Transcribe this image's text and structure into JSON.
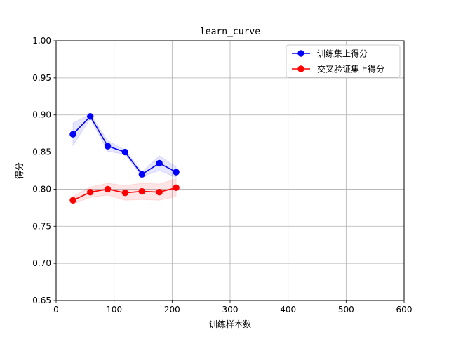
{
  "chart_data": {
    "type": "line",
    "title": "learn_curve",
    "xlabel": "训练样本数",
    "ylabel": "得分",
    "xlim": [
      0,
      600
    ],
    "ylim": [
      0.65,
      1.0
    ],
    "xticks": [
      0,
      100,
      200,
      300,
      400,
      500,
      600
    ],
    "yticks": [
      0.65,
      0.7,
      0.75,
      0.8,
      0.85,
      0.9,
      0.95,
      1.0
    ],
    "grid": true,
    "legend_position": "top-right",
    "x": [
      29,
      59,
      89,
      119,
      148,
      178,
      207
    ],
    "series": [
      {
        "name": "训练集上得分",
        "color": "#0000ff",
        "band_color": "#0000ff",
        "values": [
          0.874,
          0.898,
          0.858,
          0.85,
          0.82,
          0.835,
          0.823
        ],
        "std": [
          0.015,
          0.003,
          0.007,
          0.003,
          0.003,
          0.01,
          0.007
        ]
      },
      {
        "name": "交叉验证集上得分",
        "color": "#ff0000",
        "band_color": "#ff0000",
        "values": [
          0.785,
          0.796,
          0.8,
          0.795,
          0.797,
          0.796,
          0.802
        ],
        "std": [
          0.005,
          0.007,
          0.008,
          0.01,
          0.011,
          0.011,
          0.012
        ]
      }
    ]
  }
}
